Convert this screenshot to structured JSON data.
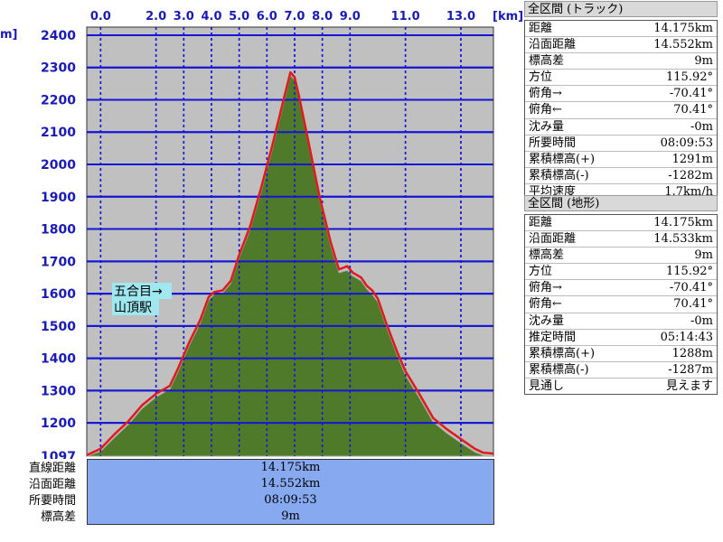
{
  "chart_data": {
    "type": "area",
    "x_unit": "[km]",
    "y_unit": "m]",
    "x_ticks": [
      "0.0",
      "2.0",
      "3.0",
      "4.0",
      "5.0",
      "6.0",
      "7.0",
      "8.0",
      "9.0",
      "11.0",
      "13.0"
    ],
    "x_tick_values": [
      0,
      2,
      3,
      4,
      5,
      6,
      7,
      8,
      9,
      11,
      13
    ],
    "y_ticks": [
      "1097",
      "1200",
      "1300",
      "1400",
      "1500",
      "1600",
      "1700",
      "1800",
      "1900",
      "2000",
      "2100",
      "2200",
      "2300",
      "2400"
    ],
    "y_tick_values": [
      1097,
      1200,
      1300,
      1400,
      1500,
      1600,
      1700,
      1800,
      1900,
      2000,
      2100,
      2200,
      2300,
      2400
    ],
    "xlim": [
      -0.5,
      14.175
    ],
    "ylim": [
      1097,
      2425
    ],
    "grid": true,
    "track_profile": {
      "name": "トラック",
      "color": "#e01a1a",
      "x": [
        -0.5,
        0.0,
        0.5,
        1.0,
        1.5,
        2.0,
        2.5,
        2.8,
        3.2,
        3.6,
        3.9,
        4.1,
        4.4,
        4.7,
        5.0,
        5.4,
        5.8,
        6.2,
        6.6,
        6.85,
        7.0,
        7.15,
        7.5,
        7.9,
        8.3,
        8.6,
        8.9,
        9.1,
        9.4,
        9.6,
        9.8,
        10.0,
        10.3,
        10.7,
        11.0,
        11.5,
        12.0,
        12.5,
        13.0,
        13.5,
        13.8,
        14.175
      ],
      "y": [
        1100,
        1120,
        1165,
        1205,
        1255,
        1290,
        1315,
        1370,
        1450,
        1520,
        1590,
        1605,
        1610,
        1640,
        1720,
        1810,
        1930,
        2060,
        2200,
        2285,
        2270,
        2215,
        2070,
        1900,
        1760,
        1675,
        1685,
        1665,
        1650,
        1625,
        1610,
        1585,
        1510,
        1420,
        1360,
        1290,
        1215,
        1180,
        1150,
        1120,
        1108,
        1105
      ]
    },
    "terrain_profile": {
      "name": "地形",
      "color": "#4e7a2a",
      "x": [
        -0.5,
        0.0,
        0.5,
        1.0,
        1.5,
        2.0,
        2.5,
        2.8,
        3.2,
        3.6,
        3.9,
        4.1,
        4.4,
        4.7,
        5.0,
        5.4,
        5.8,
        6.2,
        6.6,
        6.85,
        7.0,
        7.15,
        7.5,
        7.9,
        8.3,
        8.6,
        8.9,
        9.1,
        9.4,
        9.6,
        9.8,
        10.0,
        10.3,
        10.7,
        11.0,
        11.5,
        12.0,
        12.5,
        13.0,
        13.5,
        13.8,
        14.175
      ],
      "y": [
        1097,
        1112,
        1155,
        1195,
        1245,
        1280,
        1305,
        1360,
        1440,
        1510,
        1580,
        1598,
        1602,
        1632,
        1710,
        1800,
        1918,
        2048,
        2188,
        2275,
        2262,
        2205,
        2060,
        1890,
        1748,
        1665,
        1672,
        1655,
        1640,
        1615,
        1598,
        1575,
        1500,
        1410,
        1348,
        1278,
        1203,
        1168,
        1138,
        1110,
        1100,
        1097
      ]
    },
    "annotation": {
      "line1": "五合目→",
      "line2": "山頂駅",
      "x": 2.2,
      "y": 1590
    }
  },
  "summary": {
    "labels": [
      "直線距離",
      "沿面距離",
      "所要時間",
      "標高差"
    ],
    "values": [
      "14.175km",
      "14.552km",
      "08:09:53",
      "9m"
    ]
  },
  "panels": [
    {
      "title": "全区間 (トラック)",
      "rows": [
        {
          "k": "距離",
          "v": "14.175km"
        },
        {
          "k": "沿面距離",
          "v": "14.552km"
        },
        {
          "k": "標高差",
          "v": "9m"
        },
        {
          "k": "方位",
          "v": "115.92°"
        },
        {
          "k": "俯角→",
          "v": "-70.41°"
        },
        {
          "k": "俯角←",
          "v": "70.41°"
        },
        {
          "k": "沈み量",
          "v": "-0m"
        },
        {
          "k": "所要時間",
          "v": "08:09:53"
        },
        {
          "k": "累積標高(+)",
          "v": "1291m"
        },
        {
          "k": "累積標高(-)",
          "v": "-1282m"
        },
        {
          "k": "平均速度",
          "v": "1.7km/h"
        }
      ]
    },
    {
      "title": "全区間 (地形)",
      "rows": [
        {
          "k": "距離",
          "v": "14.175km"
        },
        {
          "k": "沿面距離",
          "v": "14.533km"
        },
        {
          "k": "標高差",
          "v": "9m"
        },
        {
          "k": "方位",
          "v": "115.92°"
        },
        {
          "k": "俯角→",
          "v": "-70.41°"
        },
        {
          "k": "俯角←",
          "v": "70.41°"
        },
        {
          "k": "沈み量",
          "v": "-0m"
        },
        {
          "k": "推定時間",
          "v": "05:14:43"
        },
        {
          "k": "累積標高(+)",
          "v": "1288m"
        },
        {
          "k": "累積標高(-)",
          "v": "-1287m"
        },
        {
          "k": "見通し",
          "v": "見えます"
        }
      ]
    }
  ],
  "colors": {
    "plot_bg": "#c0c0c0",
    "grid": "#1515d8",
    "terrain_fill": "#4e7a2a",
    "track_line": "#e01a1a",
    "summary_bg": "#87a9f0",
    "axis_text": "#1a1ab4"
  }
}
